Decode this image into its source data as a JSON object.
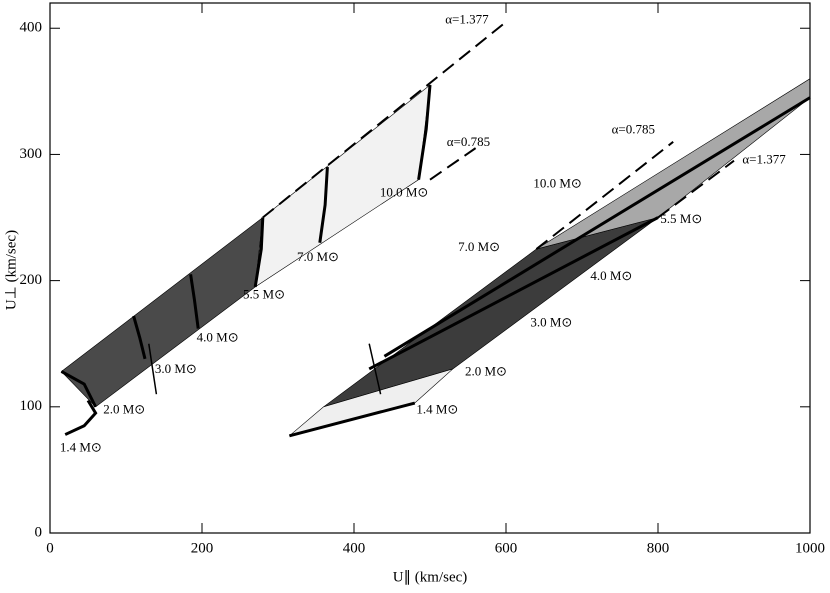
{
  "chart_data": {
    "type": "line",
    "xlabel": "U∥ (km/sec)",
    "ylabel": "U⊥ (km/sec)",
    "xlim": [
      0,
      1000
    ],
    "ylim": [
      0,
      420
    ],
    "xticks": [
      0,
      200,
      400,
      600,
      800,
      1000
    ],
    "yticks": [
      0,
      100,
      200,
      300,
      400
    ],
    "series": [
      {
        "x": [
          15,
          280,
          270,
          60
        ],
        "values": [
          128,
          250,
          195,
          100
        ],
        "fill": "#4a4a4a",
        "color": "#000",
        "width": 0.6,
        "dash": false
      },
      {
        "x": [
          280,
          500,
          485,
          270
        ],
        "values": [
          250,
          355,
          280,
          195
        ],
        "fill": "#f2f2f2",
        "color": "#000",
        "width": 0.6,
        "dash": false
      },
      {
        "x": [
          360,
          640,
          800,
          530
        ],
        "values": [
          100,
          225,
          250,
          130
        ],
        "fill": "#3c3c3c",
        "color": "#000",
        "width": 0.6,
        "dash": false
      },
      {
        "x": [
          640,
          1000,
          1000,
          800
        ],
        "values": [
          225,
          360,
          345,
          250
        ],
        "fill": "#a8a8a8",
        "color": "#000",
        "width": 0.6,
        "dash": false
      },
      {
        "x": [
          315,
          480,
          530,
          360
        ],
        "values": [
          77,
          103,
          130,
          100
        ],
        "fill": "#efefef",
        "color": "#000",
        "width": 0.6,
        "dash": false
      },
      {
        "x": [
          280,
          600
        ],
        "values": [
          250,
          405
        ],
        "color": "#000",
        "width": 2,
        "dash": true
      },
      {
        "x": [
          500,
          560
        ],
        "values": [
          280,
          305
        ],
        "color": "#000",
        "width": 2,
        "dash": true
      },
      {
        "x": [
          640,
          820
        ],
        "values": [
          225,
          310
        ],
        "color": "#000",
        "width": 2,
        "dash": true
      },
      {
        "x": [
          800,
          900
        ],
        "values": [
          250,
          295
        ],
        "color": "#000",
        "width": 2,
        "dash": true
      },
      {
        "x": [
          20,
          45,
          60,
          50
        ],
        "values": [
          78,
          85,
          95,
          105
        ],
        "color": "#000",
        "width": 3,
        "dash": false
      },
      {
        "x": [
          15,
          45,
          60
        ],
        "values": [
          128,
          118,
          100
        ],
        "color": "#000",
        "width": 3,
        "dash": false
      },
      {
        "x": [
          110,
          118,
          125
        ],
        "values": [
          172,
          155,
          138
        ],
        "color": "#000",
        "width": 3,
        "dash": false
      },
      {
        "x": [
          185,
          190,
          195
        ],
        "values": [
          205,
          185,
          162
        ],
        "color": "#000",
        "width": 3,
        "dash": false
      },
      {
        "x": [
          280,
          278,
          270
        ],
        "values": [
          250,
          225,
          195
        ],
        "color": "#000",
        "width": 3,
        "dash": false
      },
      {
        "x": [
          365,
          362,
          355
        ],
        "values": [
          290,
          260,
          230
        ],
        "color": "#000",
        "width": 3,
        "dash": false
      },
      {
        "x": [
          500,
          495,
          485
        ],
        "values": [
          355,
          320,
          280
        ],
        "color": "#000",
        "width": 3,
        "dash": false
      },
      {
        "x": [
          315,
          480
        ],
        "values": [
          77,
          103
        ],
        "color": "#000",
        "width": 3,
        "dash": false
      },
      {
        "x": [
          420,
          800
        ],
        "values": [
          130,
          250
        ],
        "color": "#000",
        "width": 3,
        "dash": false
      },
      {
        "x": [
          440,
          1000
        ],
        "values": [
          140,
          345
        ],
        "color": "#000",
        "width": 3,
        "dash": false
      },
      {
        "x": [
          130,
          140
        ],
        "values": [
          150,
          110
        ],
        "color": "#000",
        "width": 1.5,
        "dash": false
      },
      {
        "x": [
          420,
          435
        ],
        "values": [
          150,
          110
        ],
        "color": "#000",
        "width": 1.5,
        "dash": false
      }
    ],
    "annotations": [
      {
        "text": "α=1.377",
        "x": 520,
        "y": 406
      },
      {
        "text": "α=0.785",
        "x": 522,
        "y": 309
      },
      {
        "text": "10.0 M⊙",
        "x": 434,
        "y": 269
      },
      {
        "text": "7.0 M⊙",
        "x": 325,
        "y": 218
      },
      {
        "text": "5.5 M⊙",
        "x": 254,
        "y": 188
      },
      {
        "text": "4.0 M⊙",
        "x": 193,
        "y": 154
      },
      {
        "text": "3.0 M⊙",
        "x": 138,
        "y": 129
      },
      {
        "text": "2.0 M⊙",
        "x": 70,
        "y": 97
      },
      {
        "text": "1.4 M⊙",
        "x": 13,
        "y": 67
      },
      {
        "text": "α=0.785",
        "x": 739,
        "y": 319
      },
      {
        "text": "α=1.377",
        "x": 911,
        "y": 295
      },
      {
        "text": "10.0 M⊙",
        "x": 636,
        "y": 276
      },
      {
        "text": "7.0 M⊙",
        "x": 537,
        "y": 226
      },
      {
        "text": "5.5 M⊙",
        "x": 803,
        "y": 248
      },
      {
        "text": "4.0 M⊙",
        "x": 711,
        "y": 203
      },
      {
        "text": "3.0 M⊙",
        "x": 632,
        "y": 166
      },
      {
        "text": "2.0 M⊙",
        "x": 546,
        "y": 127
      },
      {
        "text": "1.4 M⊙",
        "x": 482,
        "y": 97
      }
    ]
  }
}
